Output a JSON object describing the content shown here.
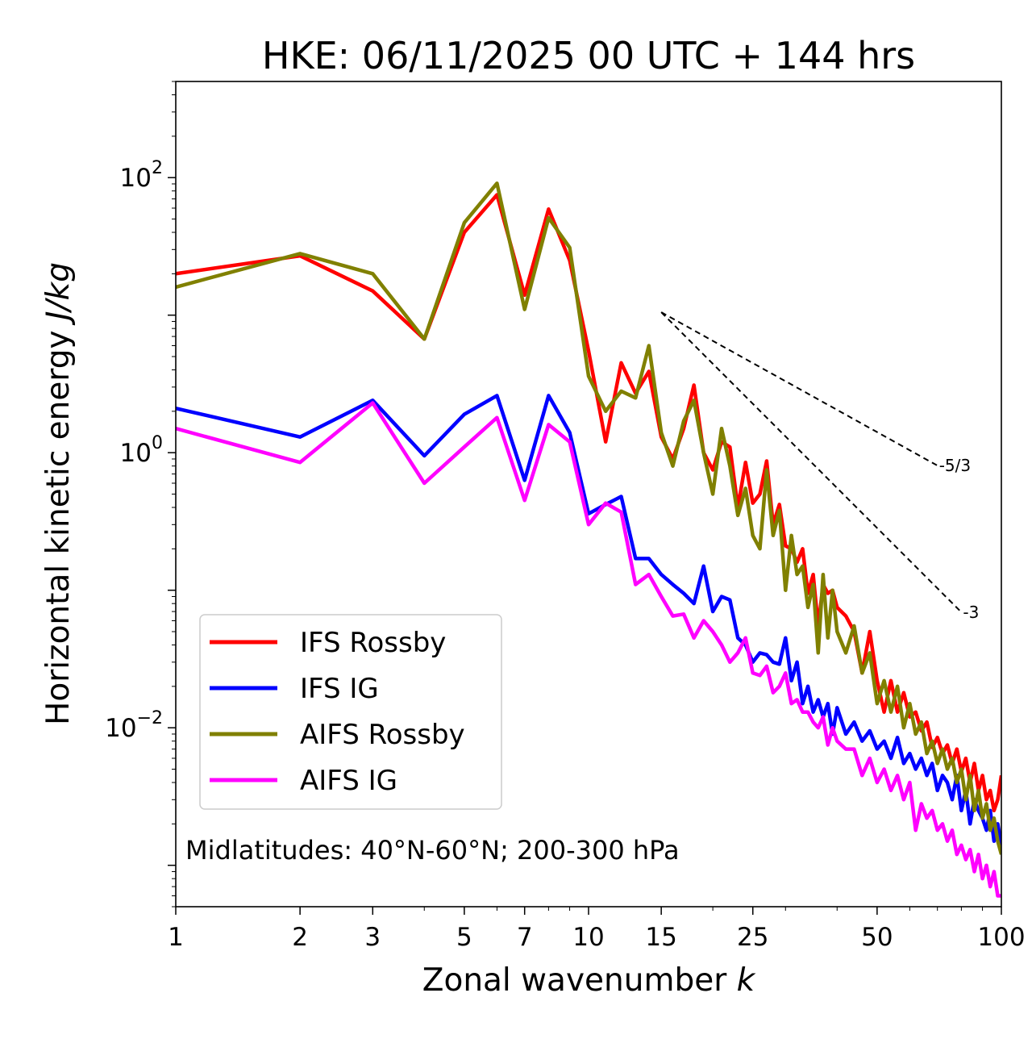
{
  "chart_data": {
    "type": "line",
    "title": "HKE: 06/11/2025 00 UTC + 144 hrs",
    "xlabel": "Zonal wavenumber",
    "xlabel_var": "k",
    "ylabel": "Horizontal kinetic energy",
    "ylabel_units": "J/kg",
    "xscale": "log",
    "yscale": "log",
    "xlim": [
      1,
      100
    ],
    "ylim": [
      0.0005,
      500
    ],
    "x_ticks": [
      1,
      2,
      3,
      5,
      7,
      10,
      15,
      25,
      50,
      100
    ],
    "x_tick_labels": [
      "1",
      "2",
      "3",
      "5",
      "7",
      "10",
      "15",
      "25",
      "50",
      "100"
    ],
    "y_ticks": [
      {
        "value": 100,
        "base": "10",
        "exp": "2"
      },
      {
        "value": 1,
        "base": "10",
        "exp": "0"
      },
      {
        "value": 0.01,
        "base": "10",
        "exp": "−2"
      }
    ],
    "legend_position": "lower-left",
    "annotation": "Midlatitudes: 40°N-60°N; 200-300 hPa",
    "reference_slopes": [
      {
        "label": "-5/3",
        "slope": -1.6667,
        "x_start": 15,
        "y_start": 10.5,
        "x_end": 70
      },
      {
        "label": "-3",
        "slope": -3,
        "x_start": 15,
        "y_start": 10.5,
        "x_end": 80
      }
    ],
    "series": [
      {
        "name": "IFS Rossby",
        "color": "#ff0000",
        "x": [
          1,
          2,
          3,
          4,
          5,
          6,
          7,
          8,
          9,
          10,
          11,
          12,
          13,
          14,
          15,
          16,
          17,
          18,
          19,
          20,
          21,
          22,
          23,
          24,
          25,
          26,
          27,
          28,
          29,
          30,
          31,
          32,
          33,
          34,
          35,
          36,
          37,
          38,
          39,
          40,
          42,
          44,
          46,
          48,
          50,
          52,
          54,
          56,
          58,
          60,
          62,
          64,
          66,
          68,
          70,
          72,
          74,
          76,
          78,
          80,
          82,
          84,
          86,
          88,
          90,
          92,
          94,
          96,
          98,
          100
        ],
        "values": [
          20,
          27,
          15,
          6.7,
          40,
          75,
          14,
          59,
          25,
          5.5,
          1.2,
          4.5,
          2.7,
          3.9,
          1.3,
          0.9,
          1.5,
          3.1,
          1.0,
          0.75,
          1.2,
          1.1,
          0.4,
          0.85,
          0.43,
          0.5,
          0.87,
          0.3,
          0.42,
          0.21,
          0.2,
          0.16,
          0.2,
          0.095,
          0.13,
          0.055,
          0.11,
          0.095,
          0.1,
          0.075,
          0.065,
          0.05,
          0.025,
          0.05,
          0.022,
          0.013,
          0.022,
          0.013,
          0.018,
          0.012,
          0.013,
          0.0095,
          0.011,
          0.0072,
          0.0085,
          0.0065,
          0.0075,
          0.0055,
          0.007,
          0.0048,
          0.006,
          0.004,
          0.0055,
          0.0035,
          0.0045,
          0.003,
          0.0035,
          0.0025,
          0.003,
          0.0045
        ]
      },
      {
        "name": "IFS IG",
        "color": "#0000ff",
        "x": [
          1,
          2,
          3,
          4,
          5,
          6,
          7,
          8,
          9,
          10,
          11,
          12,
          13,
          14,
          15,
          16,
          17,
          18,
          19,
          20,
          21,
          22,
          23,
          24,
          25,
          26,
          27,
          28,
          29,
          30,
          31,
          32,
          33,
          34,
          35,
          36,
          37,
          38,
          39,
          40,
          42,
          44,
          46,
          48,
          50,
          52,
          54,
          56,
          58,
          60,
          62,
          64,
          66,
          68,
          70,
          72,
          74,
          76,
          78,
          80,
          82,
          84,
          86,
          88,
          90,
          92,
          94,
          96,
          98,
          100
        ],
        "values": [
          2.1,
          1.3,
          2.4,
          0.95,
          1.9,
          2.6,
          0.63,
          2.6,
          1.4,
          0.36,
          0.42,
          0.48,
          0.17,
          0.17,
          0.13,
          0.11,
          0.095,
          0.08,
          0.15,
          0.07,
          0.09,
          0.085,
          0.045,
          0.04,
          0.03,
          0.035,
          0.034,
          0.03,
          0.029,
          0.045,
          0.022,
          0.03,
          0.015,
          0.02,
          0.013,
          0.016,
          0.012,
          0.015,
          0.009,
          0.014,
          0.009,
          0.011,
          0.008,
          0.0095,
          0.007,
          0.008,
          0.006,
          0.0085,
          0.0055,
          0.0065,
          0.005,
          0.006,
          0.0045,
          0.0055,
          0.0035,
          0.0045,
          0.004,
          0.003,
          0.0045,
          0.0025,
          0.0035,
          0.002,
          0.003,
          0.0025,
          0.0022,
          0.0018,
          0.0025,
          0.0015,
          0.002,
          0.0014
        ]
      },
      {
        "name": "AIFS Rossby",
        "color": "#808000",
        "x": [
          1,
          2,
          3,
          4,
          5,
          6,
          7,
          8,
          9,
          10,
          11,
          12,
          13,
          14,
          15,
          16,
          17,
          18,
          19,
          20,
          21,
          22,
          23,
          24,
          25,
          26,
          27,
          28,
          29,
          30,
          31,
          32,
          33,
          34,
          35,
          36,
          37,
          38,
          39,
          40,
          42,
          44,
          46,
          48,
          50,
          52,
          54,
          56,
          58,
          60,
          62,
          64,
          66,
          68,
          70,
          72,
          74,
          76,
          78,
          80,
          82,
          84,
          86,
          88,
          90,
          92,
          94,
          96,
          98,
          100
        ],
        "values": [
          16,
          28,
          20,
          6.7,
          47,
          91,
          11,
          51,
          31,
          3.6,
          2.0,
          2.8,
          2.5,
          6.0,
          1.4,
          0.8,
          1.7,
          2.4,
          1.0,
          0.5,
          1.5,
          0.8,
          0.35,
          0.55,
          0.25,
          0.2,
          0.75,
          0.25,
          0.38,
          0.1,
          0.25,
          0.13,
          0.15,
          0.075,
          0.11,
          0.035,
          0.13,
          0.045,
          0.1,
          0.05,
          0.035,
          0.055,
          0.025,
          0.035,
          0.015,
          0.022,
          0.013,
          0.02,
          0.01,
          0.015,
          0.009,
          0.011,
          0.0065,
          0.008,
          0.0055,
          0.007,
          0.005,
          0.006,
          0.004,
          0.005,
          0.003,
          0.0045,
          0.0025,
          0.0035,
          0.0022,
          0.0028,
          0.0018,
          0.0022,
          0.0015,
          0.0012
        ]
      },
      {
        "name": "AIFS IG",
        "color": "#ff00ff",
        "x": [
          1,
          2,
          3,
          4,
          5,
          6,
          7,
          8,
          9,
          10,
          11,
          12,
          13,
          14,
          15,
          16,
          17,
          18,
          19,
          20,
          21,
          22,
          23,
          24,
          25,
          26,
          27,
          28,
          29,
          30,
          31,
          32,
          33,
          34,
          35,
          36,
          37,
          38,
          39,
          40,
          42,
          44,
          46,
          48,
          50,
          52,
          54,
          56,
          58,
          60,
          62,
          64,
          66,
          68,
          70,
          72,
          74,
          76,
          78,
          80,
          82,
          84,
          86,
          88,
          90,
          92,
          94,
          96,
          98,
          100
        ],
        "values": [
          1.5,
          0.85,
          2.3,
          0.6,
          1.1,
          1.8,
          0.45,
          1.6,
          1.2,
          0.3,
          0.43,
          0.37,
          0.11,
          0.13,
          0.09,
          0.065,
          0.067,
          0.045,
          0.06,
          0.05,
          0.04,
          0.03,
          0.035,
          0.045,
          0.025,
          0.024,
          0.028,
          0.018,
          0.02,
          0.025,
          0.015,
          0.016,
          0.013,
          0.013,
          0.011,
          0.01,
          0.012,
          0.0075,
          0.01,
          0.008,
          0.007,
          0.007,
          0.0045,
          0.006,
          0.004,
          0.005,
          0.0035,
          0.0045,
          0.003,
          0.004,
          0.0018,
          0.0028,
          0.0022,
          0.0025,
          0.0018,
          0.002,
          0.0015,
          0.0018,
          0.0012,
          0.0014,
          0.0011,
          0.0013,
          0.0009,
          0.0012,
          0.0008,
          0.001,
          0.0007,
          0.0009,
          0.0006,
          0.0006
        ]
      }
    ]
  }
}
